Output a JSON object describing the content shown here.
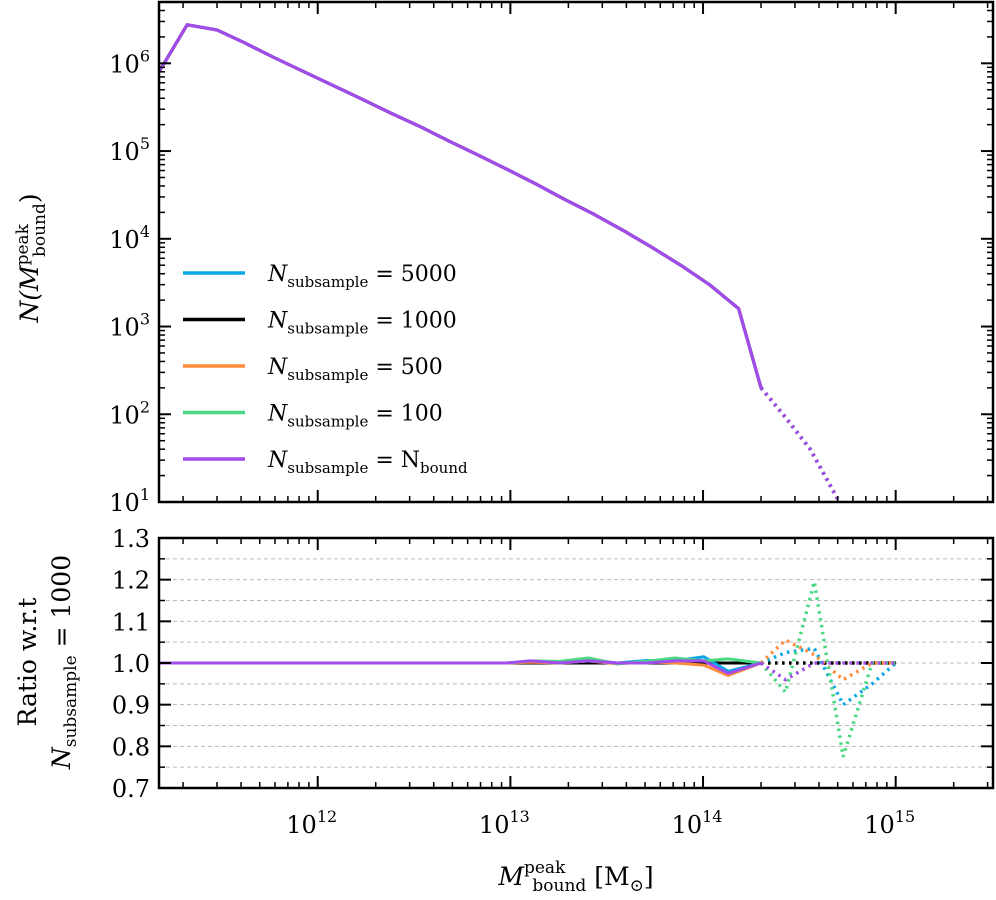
{
  "chart_data": [
    {
      "type": "line",
      "panel": "top",
      "xscale": "log",
      "yscale": "log",
      "xlim": [
        150000000000.0,
        3200000000000000.0
      ],
      "ylim": [
        10,
        5000000
      ],
      "ylabel": "N(M^peak_bound)",
      "x_tick_labels": [
        {
          "base": "10",
          "exp": "12",
          "value": 1000000000000.0
        },
        {
          "base": "10",
          "exp": "13",
          "value": 10000000000000.0
        },
        {
          "base": "10",
          "exp": "14",
          "value": 100000000000000.0
        },
        {
          "base": "10",
          "exp": "15",
          "value": 1000000000000000.0
        }
      ],
      "y_tick_labels": [
        {
          "base": "10",
          "exp": "1",
          "value": 10
        },
        {
          "base": "10",
          "exp": "2",
          "value": 100
        },
        {
          "base": "10",
          "exp": "3",
          "value": 1000
        },
        {
          "base": "10",
          "exp": "4",
          "value": 10000
        },
        {
          "base": "10",
          "exp": "5",
          "value": 100000
        },
        {
          "base": "10",
          "exp": "6",
          "value": 1000000
        }
      ],
      "legend": {
        "location": "center-left",
        "entries": [
          {
            "prefix": "N",
            "sub": "subsample",
            "suffix": " = 5000",
            "color": "#0aa6e6"
          },
          {
            "prefix": "N",
            "sub": "subsample",
            "suffix": " = 1000",
            "color": "#000000"
          },
          {
            "prefix": "N",
            "sub": "subsample",
            "suffix": " = 500",
            "color": "#ff8c3b"
          },
          {
            "prefix": "N",
            "sub": "subsample",
            "suffix": " = 100",
            "color": "#4ad882"
          },
          {
            "prefix": "N",
            "sub": "subsample",
            "suffix": " = N",
            "sub2": "bound",
            "color": "#a14ceb"
          }
        ]
      },
      "solid_cutoff_x": 200000000000000.0,
      "series": [
        {
          "name": "Nsubsample = 1000",
          "color": "#000000",
          "x": [
            150000000000.0,
            210000000000.0,
            300000000000.0,
            420000000000.0,
            600000000000.0,
            850000000000.0,
            1200000000000.0,
            1700000000000.0,
            2400000000000.0,
            3400000000000.0,
            4800000000000.0,
            6800000000000.0,
            9600000000000.0,
            13600000000000.0,
            19200000000000.0,
            27200000000000.0,
            38400000000000.0,
            54200000000000.0,
            76600000000000.0,
            108000000000000.0,
            153000000000000.0,
            200000000000000.0,
            260000000000000.0,
            360000000000000.0,
            510000000000000.0
          ],
          "y": [
            800000,
            2750000,
            2400000,
            1700000,
            1150000,
            800000,
            560000,
            390000,
            270000,
            190000,
            130000,
            90000,
            62000,
            42000,
            28000,
            19000,
            12500,
            8000,
            5000,
            3000,
            1600,
            200,
            100,
            40,
            10
          ]
        },
        {
          "name": "Nsubsample = Nbound",
          "color": "#a14ceb",
          "x": [
            150000000000.0,
            210000000000.0,
            300000000000.0,
            420000000000.0,
            600000000000.0,
            850000000000.0,
            1200000000000.0,
            1700000000000.0,
            2400000000000.0,
            3400000000000.0,
            4800000000000.0,
            6800000000000.0,
            9600000000000.0,
            13600000000000.0,
            19200000000000.0,
            27200000000000.0,
            38400000000000.0,
            54200000000000.0,
            76600000000000.0,
            108000000000000.0,
            153000000000000.0,
            200000000000000.0,
            260000000000000.0,
            360000000000000.0,
            510000000000000.0
          ],
          "y": [
            800000,
            2750000,
            2400000,
            1700000,
            1150000,
            800000,
            560000,
            390000,
            270000,
            190000,
            130000,
            90000,
            62000,
            42000,
            28000,
            19000,
            12500,
            8000,
            5000,
            3000,
            1600,
            200,
            100,
            40,
            10
          ]
        }
      ]
    },
    {
      "type": "line",
      "panel": "bottom",
      "xscale": "log",
      "yscale": "linear",
      "xlim": [
        150000000000.0,
        3200000000000000.0
      ],
      "ylim": [
        0.7,
        1.3
      ],
      "grid": true,
      "xlabel": "M^peak_bound [M_sun]",
      "ylabel": [
        "Ratio w.r.t",
        "N_subsample = 1000"
      ],
      "y_ticks": [
        "0.7",
        "0.8",
        "0.9",
        "1.0",
        "1.1",
        "1.2",
        "1.3"
      ],
      "solid_cutoff_x": 200000000000000.0,
      "x": [
        150000000000.0,
        210000000000.0,
        300000000000.0,
        420000000000.0,
        600000000000.0,
        850000000000.0,
        1200000000000.0,
        1700000000000.0,
        2400000000000.0,
        3400000000000.0,
        4800000000000.0,
        6800000000000.0,
        9600000000000.0,
        12700000000000.0,
        18000000000000.0,
        25400000000000.0,
        35900000000000.0,
        50700000000000.0,
        71600000000000.0,
        101000000000000.0,
        135000000000000.0,
        200000000000000.0,
        268000000000000.0,
        378000000000000.0,
        534000000000000.0,
        754000000000000.0,
        1000000000000000.0
      ],
      "series": [
        {
          "name": "Nsubsample = 1000",
          "color": "#000000",
          "values": [
            1,
            1,
            1,
            1,
            1,
            1,
            1,
            1,
            1,
            1,
            1,
            1,
            1,
            1,
            1,
            1,
            1,
            1,
            1,
            1,
            1,
            1,
            1,
            1,
            1,
            1,
            1
          ]
        },
        {
          "name": "Nsubsample = 5000",
          "color": "#0aa6e6",
          "values": [
            1,
            1,
            1,
            1,
            1,
            1,
            1,
            1,
            1,
            1,
            1,
            1,
            1,
            1.004,
            1.002,
            1.008,
            1.0,
            1.006,
            1.005,
            1.015,
            0.98,
            1.0,
            1.025,
            1.035,
            0.9,
            0.95,
            1.0
          ]
        },
        {
          "name": "Nsubsample = 500",
          "color": "#ff8c3b",
          "values": [
            1,
            1,
            1,
            1,
            1,
            1,
            1,
            1,
            1,
            1,
            1,
            1,
            1,
            1.002,
            1.0,
            1.005,
            0.998,
            1.003,
            1.0,
            0.995,
            0.97,
            1.0,
            1.055,
            1.02,
            0.96,
            1.0,
            1.0
          ]
        },
        {
          "name": "Nsubsample = 100",
          "color": "#4ad882",
          "values": [
            1,
            1,
            1,
            1,
            1,
            1,
            1,
            1,
            1,
            1,
            1,
            1,
            1,
            1.005,
            1.004,
            1.012,
            0.998,
            1.004,
            1.012,
            1.005,
            1.01,
            1.0,
            0.93,
            1.195,
            0.775,
            1.0,
            1.0
          ]
        },
        {
          "name": "Nsubsample = Nbound",
          "color": "#a14ceb",
          "values": [
            1,
            1,
            1,
            1,
            1,
            1,
            1,
            1,
            1,
            1,
            1,
            1,
            1,
            1.005,
            1.0,
            1.005,
            1.0,
            1.0,
            1.005,
            1.005,
            0.975,
            1.0,
            0.96,
            1.0,
            1.0,
            1.0,
            1.0
          ]
        }
      ]
    }
  ]
}
